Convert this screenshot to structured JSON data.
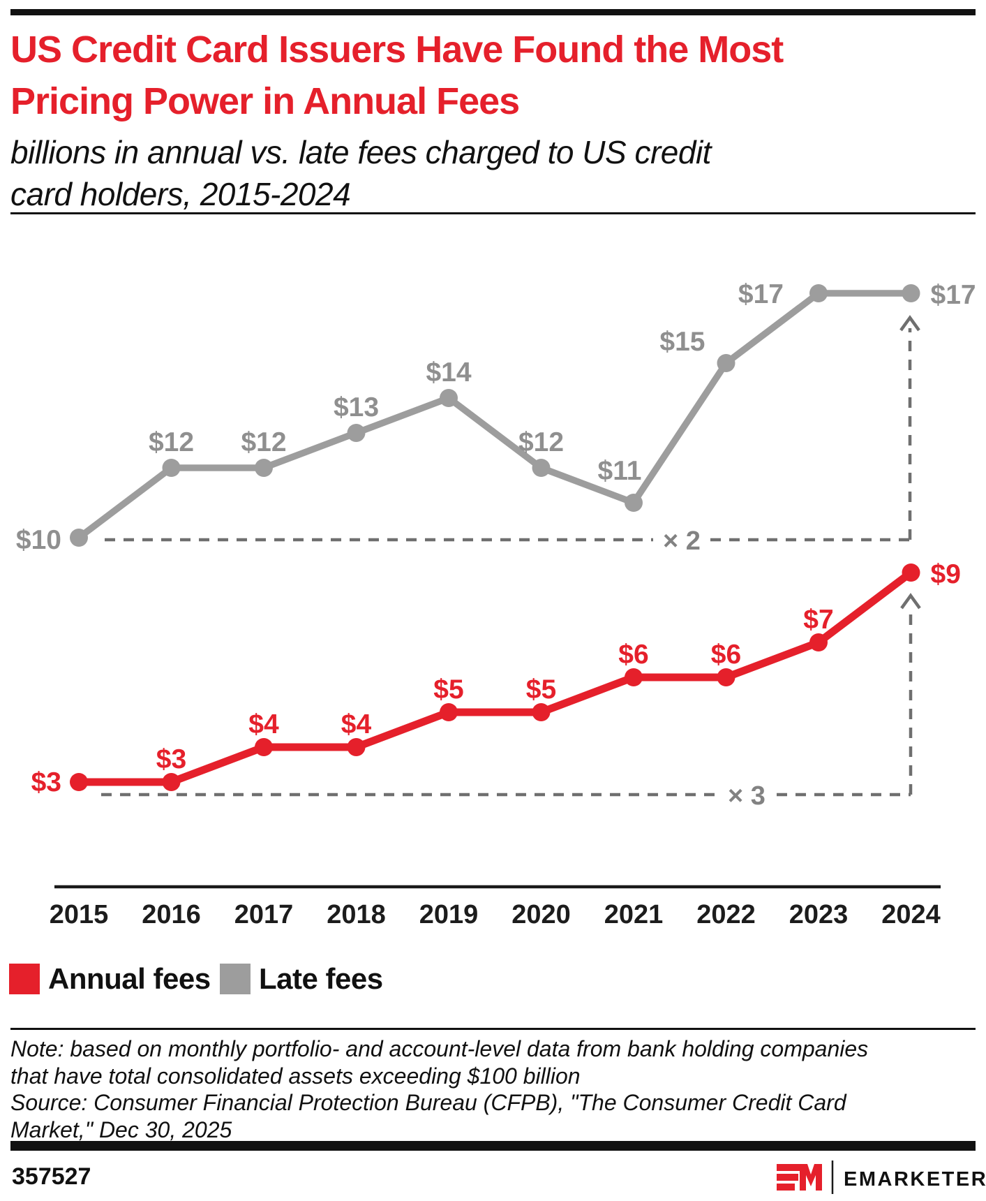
{
  "header": {
    "title_lines": [
      "US Credit Card Issuers Have Found the Most",
      "Pricing Power in Annual Fees"
    ],
    "subtitle_lines": [
      "billions in annual vs. late fees charged to US credit",
      "card holders, 2015-2024"
    ],
    "title_color": "#e5202b"
  },
  "chart_data": {
    "type": "line",
    "categories": [
      "2015",
      "2016",
      "2017",
      "2018",
      "2019",
      "2020",
      "2021",
      "2022",
      "2023",
      "2024"
    ],
    "series": [
      {
        "name": "Annual fees",
        "key": "annual_fees",
        "color": "#e5202b",
        "values": [
          3,
          3,
          4,
          4,
          5,
          5,
          6,
          6,
          7,
          9
        ]
      },
      {
        "name": "Late fees",
        "key": "late_fees",
        "color": "#9d9d9d",
        "values": [
          10,
          12,
          12,
          13,
          14,
          12,
          11,
          15,
          17,
          17
        ]
      }
    ],
    "value_prefix": "$",
    "data_labels": true,
    "grid": false,
    "legend_position": "bottom-left",
    "annotations": [
      {
        "series": "late_fees",
        "label": "× 2"
      },
      {
        "series": "annual_fees",
        "label": "× 3"
      }
    ]
  },
  "legend": {
    "items": [
      {
        "label": "Annual fees",
        "color": "#e5202b"
      },
      {
        "label": "Late fees",
        "color": "#9d9d9d"
      }
    ]
  },
  "notes": {
    "lines": [
      "Note: based on monthly portfolio- and account-level data from bank holding companies",
      "that have total consolidated assets exceeding $100 billion",
      "Source: Consumer Financial Protection Bureau (CFPB), \"The Consumer Credit Card",
      "Market,\" Dec 30, 2025"
    ]
  },
  "footer": {
    "chart_id": "357527",
    "monogram": "EM",
    "brand": "EMARKETER"
  }
}
